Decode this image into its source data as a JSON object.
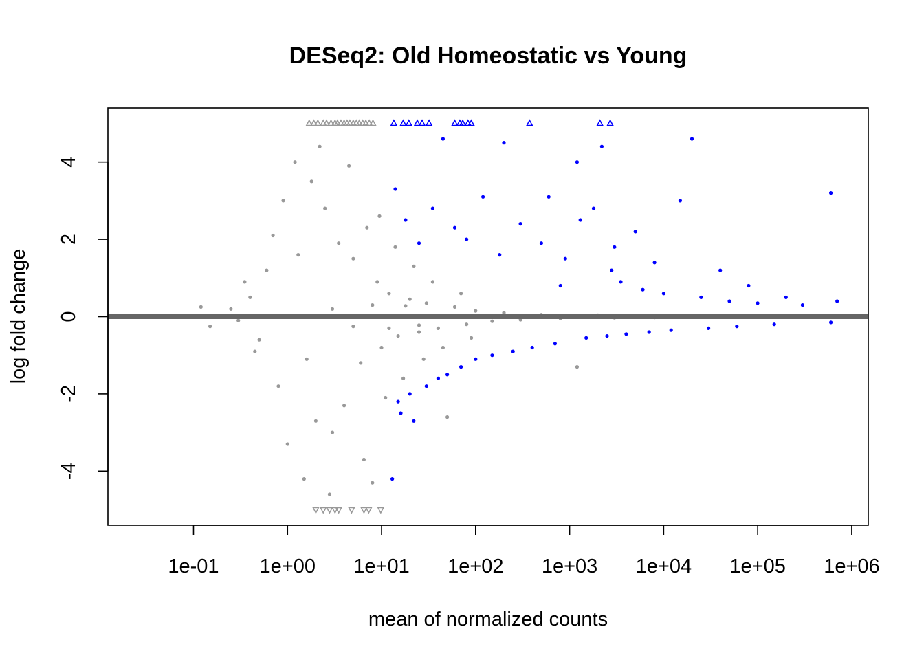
{
  "chart_data": {
    "type": "scatter",
    "title": "DESeq2: Old Homeostatic vs Young",
    "xlabel": "mean of normalized counts",
    "ylabel": "log fold change",
    "x_scale": "log10",
    "xlim": [
      0.0123,
      1500000
    ],
    "ylim": [
      -5.4,
      5.4
    ],
    "x_ticks": [
      {
        "value": 0.1,
        "label": "1e-01"
      },
      {
        "value": 1,
        "label": "1e+00"
      },
      {
        "value": 10,
        "label": "1e+01"
      },
      {
        "value": 100,
        "label": "1e+02"
      },
      {
        "value": 1000,
        "label": "1e+03"
      },
      {
        "value": 10000,
        "label": "1e+04"
      },
      {
        "value": 100000,
        "label": "1e+05"
      },
      {
        "value": 1000000,
        "label": "1e+06"
      }
    ],
    "y_ticks": [
      {
        "value": -4,
        "label": "-4"
      },
      {
        "value": -2,
        "label": "-2"
      },
      {
        "value": 0,
        "label": "0"
      },
      {
        "value": 2,
        "label": "2"
      },
      {
        "value": 4,
        "label": "4"
      }
    ],
    "reference_line": {
      "y": 0,
      "color": "#666666"
    },
    "colors": {
      "not_significant": "#999999",
      "significant": "#0000ff"
    },
    "series": [
      {
        "significant": false,
        "points": [
          [
            0.25,
            0.2
          ],
          [
            0.3,
            -0.1
          ],
          [
            0.4,
            0.5
          ],
          [
            0.5,
            -0.6
          ],
          [
            0.6,
            1.2
          ],
          [
            0.7,
            2.1
          ],
          [
            0.8,
            -1.8
          ],
          [
            0.9,
            3.0
          ],
          [
            1.0,
            -3.3
          ],
          [
            1.2,
            4.0
          ],
          [
            1.5,
            -4.2
          ],
          [
            1.8,
            3.5
          ],
          [
            2.0,
            -2.7
          ],
          [
            2.5,
            2.8
          ],
          [
            3.0,
            -3.0
          ],
          [
            3.5,
            1.9
          ],
          [
            4.0,
            -2.3
          ],
          [
            5.0,
            1.5
          ],
          [
            6.0,
            -1.2
          ],
          [
            7.0,
            2.3
          ],
          [
            8.0,
            -4.3
          ],
          [
            9.0,
            0.9
          ],
          [
            10.0,
            -0.8
          ],
          [
            12.0,
            0.6
          ],
          [
            15.0,
            -0.5
          ],
          [
            20.0,
            0.45
          ],
          [
            25.0,
            -0.4
          ],
          [
            30.0,
            0.35
          ],
          [
            40.0,
            -0.3
          ],
          [
            50.0,
            -2.6
          ],
          [
            60.0,
            0.25
          ],
          [
            80.0,
            -0.2
          ],
          [
            100.0,
            0.15
          ],
          [
            150.0,
            -0.12
          ],
          [
            200.0,
            0.1
          ],
          [
            300.0,
            -0.08
          ],
          [
            500.0,
            0.05
          ],
          [
            800.0,
            -0.05
          ],
          [
            1200.0,
            -1.3
          ],
          [
            2000.0,
            0.04
          ],
          [
            3000.0,
            -0.03
          ],
          [
            5000.0,
            0.02
          ],
          [
            8000.0,
            -0.02
          ],
          [
            15000.0,
            0.01
          ],
          [
            30000.0,
            -0.01
          ],
          [
            60000.0,
            0.0
          ],
          [
            100000.0,
            0.0
          ],
          [
            200000.0,
            -0.01
          ],
          [
            400000.0,
            0.01
          ],
          [
            2.0,
            0.0
          ],
          [
            3.0,
            0.2
          ],
          [
            5.0,
            -0.25
          ],
          [
            8.0,
            0.3
          ],
          [
            12.0,
            -0.3
          ],
          [
            18.0,
            0.28
          ],
          [
            25.0,
            -0.22
          ],
          [
            0.15,
            -0.25
          ],
          [
            0.12,
            0.25
          ],
          [
            0.35,
            0.9
          ],
          [
            0.45,
            -0.9
          ],
          [
            1.3,
            1.6
          ],
          [
            1.6,
            -1.1
          ],
          [
            2.2,
            4.4
          ],
          [
            2.8,
            -4.6
          ],
          [
            4.5,
            3.9
          ],
          [
            6.5,
            -3.7
          ],
          [
            9.5,
            2.6
          ],
          [
            11.0,
            -2.1
          ],
          [
            14.0,
            1.8
          ],
          [
            17.0,
            -1.6
          ],
          [
            22.0,
            1.3
          ],
          [
            28.0,
            -1.1
          ],
          [
            35.0,
            0.9
          ],
          [
            45.0,
            -0.8
          ],
          [
            70.0,
            0.6
          ],
          [
            90.0,
            -0.55
          ]
        ]
      },
      {
        "significant": true,
        "points": [
          [
            14.0,
            3.3
          ],
          [
            15.0,
            -2.2
          ],
          [
            18.0,
            2.5
          ],
          [
            20.0,
            -2.0
          ],
          [
            25.0,
            1.9
          ],
          [
            30.0,
            -1.8
          ],
          [
            35.0,
            2.8
          ],
          [
            40.0,
            -1.6
          ],
          [
            45.0,
            4.6
          ],
          [
            50.0,
            -1.5
          ],
          [
            60.0,
            2.3
          ],
          [
            70.0,
            -1.3
          ],
          [
            80.0,
            2.0
          ],
          [
            100.0,
            -1.1
          ],
          [
            120.0,
            3.1
          ],
          [
            150.0,
            -1.0
          ],
          [
            180.0,
            1.6
          ],
          [
            200.0,
            4.5
          ],
          [
            250.0,
            -0.9
          ],
          [
            300.0,
            2.4
          ],
          [
            400.0,
            -0.8
          ],
          [
            500.0,
            1.9
          ],
          [
            600.0,
            3.1
          ],
          [
            700.0,
            -0.7
          ],
          [
            900.0,
            1.5
          ],
          [
            1200.0,
            4.0
          ],
          [
            1500.0,
            -0.55
          ],
          [
            1800.0,
            2.8
          ],
          [
            2200.0,
            4.4
          ],
          [
            2500.0,
            -0.5
          ],
          [
            3000.0,
            1.8
          ],
          [
            3500.0,
            0.9
          ],
          [
            4000.0,
            -0.45
          ],
          [
            5000.0,
            2.2
          ],
          [
            6000.0,
            0.7
          ],
          [
            7000.0,
            -0.4
          ],
          [
            8000.0,
            1.4
          ],
          [
            10000.0,
            0.6
          ],
          [
            12000.0,
            -0.35
          ],
          [
            15000.0,
            3.0
          ],
          [
            20000.0,
            4.6
          ],
          [
            25000.0,
            0.5
          ],
          [
            30000.0,
            -0.3
          ],
          [
            40000.0,
            1.2
          ],
          [
            50000.0,
            0.4
          ],
          [
            60000.0,
            -0.25
          ],
          [
            80000.0,
            0.8
          ],
          [
            100000.0,
            0.35
          ],
          [
            150000.0,
            -0.2
          ],
          [
            200000.0,
            0.5
          ],
          [
            300000.0,
            0.3
          ],
          [
            600000.0,
            3.2
          ],
          [
            700000.0,
            0.4
          ],
          [
            600000.0,
            -0.15
          ],
          [
            13.0,
            -4.2
          ],
          [
            16.0,
            -2.5
          ],
          [
            22.0,
            -2.7
          ],
          [
            2800.0,
            1.2
          ],
          [
            1300.0,
            2.5
          ],
          [
            800.0,
            0.8
          ]
        ]
      }
    ],
    "out_of_range_points": [
      {
        "significant": false,
        "direction": "up",
        "x": [
          1.7,
          1.9,
          2.1,
          2.4,
          2.6,
          2.9,
          3.2,
          3.4,
          3.7,
          4.0,
          4.3,
          4.6,
          5.0,
          5.4,
          5.8,
          6.3,
          6.8,
          7.4,
          8.1
        ]
      },
      {
        "significant": true,
        "direction": "up",
        "x": [
          13.5,
          17.0,
          19.5,
          24.0,
          27.0,
          32.0,
          60.0,
          68.0,
          73.0,
          83.0,
          90.0,
          375.0,
          2100.0,
          2700.0
        ]
      },
      {
        "significant": false,
        "direction": "down",
        "x": [
          2.0,
          2.4,
          2.8,
          3.2,
          3.5,
          4.8,
          6.5,
          7.3,
          9.8
        ]
      }
    ]
  }
}
